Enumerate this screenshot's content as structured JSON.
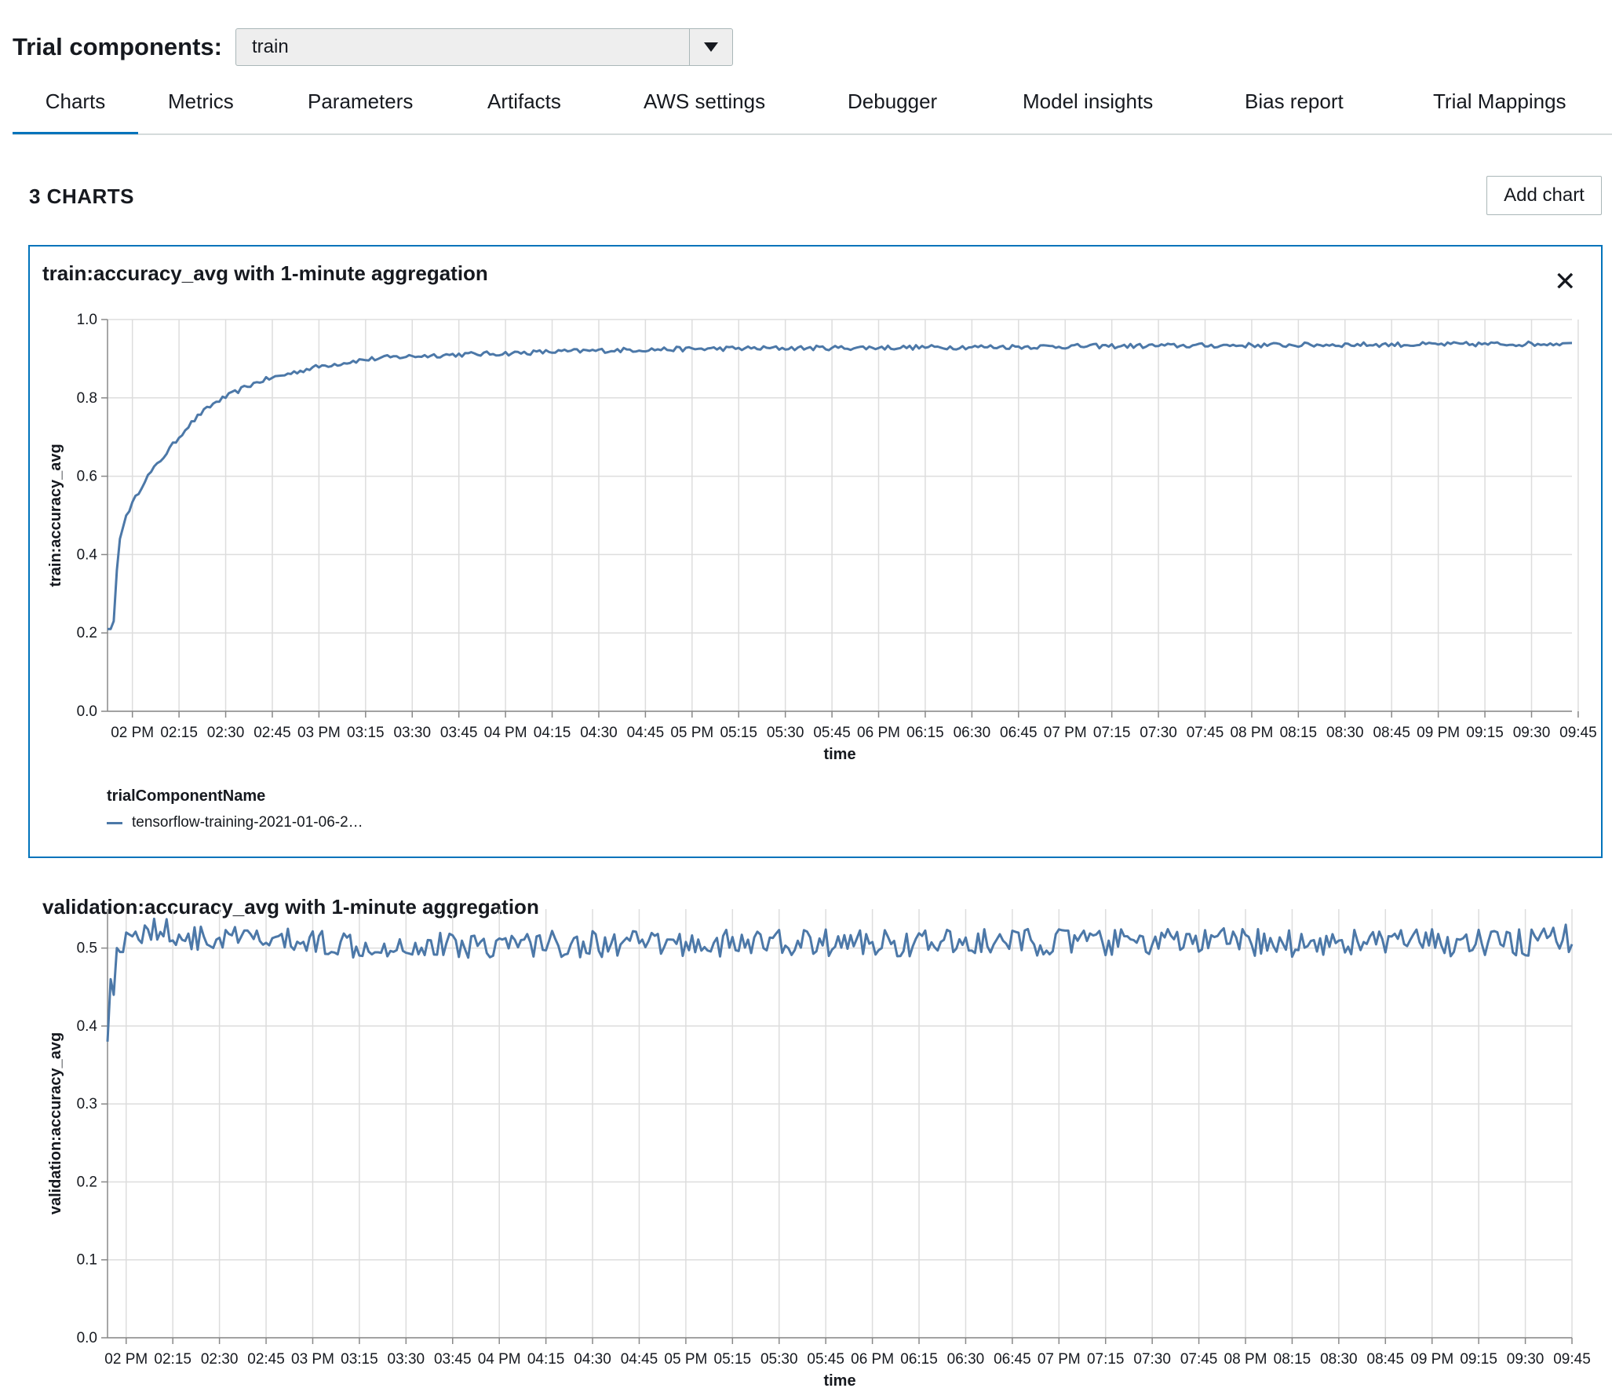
{
  "header": {
    "label": "Trial components:",
    "selected": "train",
    "dropdown_icon": "caret-down-icon"
  },
  "tabs": [
    {
      "label": "Charts",
      "active": true
    },
    {
      "label": "Metrics"
    },
    {
      "label": "Parameters"
    },
    {
      "label": "Artifacts"
    },
    {
      "label": "AWS settings"
    },
    {
      "label": "Debugger"
    },
    {
      "label": "Model insights"
    },
    {
      "label": "Bias report"
    },
    {
      "label": "Trial Mappings"
    }
  ],
  "charts_section": {
    "count_label": "3 CHARTS",
    "add_chart_label": "Add chart"
  },
  "colors": {
    "series": "#4c78a8",
    "accent": "#0073bb",
    "grid": "#dddddd"
  },
  "legend": {
    "title": "trialComponentName",
    "entry": "tensorflow-training-2021-01-06-2…"
  },
  "chart_data": [
    {
      "type": "line",
      "title": "train:accuracy_avg with 1-minute aggregation",
      "xlabel": "time",
      "ylabel": "train:accuracy_avg",
      "ylim": [
        0,
        1
      ],
      "yticks": [
        "0.0",
        "0.2",
        "0.4",
        "0.6",
        "0.8",
        "1.0"
      ],
      "x_range_minutes": [
        0,
        471
      ],
      "x_tick_minutes": [
        8,
        23,
        38,
        53,
        68,
        83,
        98,
        113,
        128,
        143,
        158,
        173,
        188,
        203,
        218,
        233,
        248,
        263,
        278,
        293,
        308,
        323,
        338,
        353,
        368,
        383,
        398,
        413,
        428,
        443,
        458,
        473
      ],
      "x_tick_labels": [
        "02 PM",
        "02:15",
        "02:30",
        "02:45",
        "03 PM",
        "03:15",
        "03:30",
        "03:45",
        "04 PM",
        "04:15",
        "04:30",
        "04:45",
        "05 PM",
        "05:15",
        "05:30",
        "05:45",
        "06 PM",
        "06:15",
        "06:30",
        "06:45",
        "07 PM",
        "07:15",
        "07:30",
        "07:45",
        "08 PM",
        "08:15",
        "08:30",
        "08:45",
        "09 PM",
        "09:15",
        "09:30",
        "09:45"
      ],
      "series": [
        {
          "name": "tensorflow-training-2021-01-06-2…",
          "x": [
            0,
            1,
            2,
            3,
            4,
            5,
            6,
            8,
            10,
            12,
            15,
            18,
            21,
            25,
            30,
            35,
            40,
            45,
            50,
            55,
            60,
            65,
            70,
            75,
            80,
            90,
            100,
            110,
            120,
            130,
            140,
            150,
            160,
            170,
            180,
            200,
            220,
            240,
            260,
            280,
            300,
            320,
            340,
            360,
            380,
            400,
            420,
            440,
            460,
            471
          ],
          "values": [
            0.21,
            0.21,
            0.23,
            0.36,
            0.44,
            0.47,
            0.5,
            0.53,
            0.56,
            0.59,
            0.62,
            0.65,
            0.68,
            0.72,
            0.76,
            0.79,
            0.81,
            0.83,
            0.845,
            0.855,
            0.865,
            0.875,
            0.883,
            0.888,
            0.895,
            0.903,
            0.907,
            0.91,
            0.912,
            0.914,
            0.917,
            0.919,
            0.921,
            0.923,
            0.924,
            0.926,
            0.927,
            0.928,
            0.929,
            0.93,
            0.931,
            0.932,
            0.933,
            0.934,
            0.935,
            0.936,
            0.936,
            0.937,
            0.938,
            0.94
          ]
        }
      ]
    },
    {
      "type": "line",
      "title": "validation:accuracy_avg with 1-minute aggregation",
      "xlabel": "time",
      "ylabel": "validation:accuracy_avg",
      "ylim": [
        0,
        0.55
      ],
      "yticks": [
        "0.0",
        "0.1",
        "0.2",
        "0.3",
        "0.4",
        "0.5"
      ],
      "x_range_minutes": [
        0,
        471
      ],
      "x_tick_minutes": [
        6,
        21,
        36,
        51,
        66,
        81,
        96,
        111,
        126,
        141,
        156,
        171,
        186,
        201,
        216,
        231,
        246,
        261,
        276,
        291,
        306,
        321,
        336,
        351,
        366,
        381,
        396,
        411,
        426,
        441,
        456,
        471
      ],
      "x_tick_labels": [
        "02 PM",
        "02:15",
        "02:30",
        "02:45",
        "03 PM",
        "03:15",
        "03:30",
        "03:45",
        "04 PM",
        "04:15",
        "04:30",
        "04:45",
        "05 PM",
        "05:15",
        "05:30",
        "05:45",
        "06 PM",
        "06:15",
        "06:30",
        "06:45",
        "07 PM",
        "07:15",
        "07:30",
        "07:45",
        "08 PM",
        "08:15",
        "08:30",
        "08:45",
        "09 PM",
        "09:15",
        "09:30",
        "09:45"
      ],
      "series": [
        {
          "name": "tensorflow-training-2021-01-06-2…",
          "x": [
            0,
            1,
            2,
            3,
            4,
            5,
            6,
            8,
            10,
            12,
            15,
            20,
            25,
            30,
            40,
            50,
            60,
            70,
            80,
            90,
            100,
            120,
            140,
            160,
            180,
            200,
            220,
            240,
            260,
            280,
            300,
            320,
            340,
            360,
            380,
            400,
            420,
            440,
            460,
            468,
            469,
            470,
            471
          ],
          "values": [
            0.38,
            0.46,
            0.44,
            0.5,
            0.495,
            0.495,
            0.52,
            0.515,
            0.525,
            0.52,
            0.525,
            0.52,
            0.515,
            0.51,
            0.512,
            0.51,
            0.508,
            0.508,
            0.505,
            0.505,
            0.503,
            0.505,
            0.506,
            0.505,
            0.505,
            0.506,
            0.507,
            0.507,
            0.506,
            0.507,
            0.508,
            0.507,
            0.508,
            0.508,
            0.506,
            0.508,
            0.507,
            0.506,
            0.507,
            0.51,
            0.53,
            0.495,
            0.505
          ]
        }
      ]
    }
  ]
}
